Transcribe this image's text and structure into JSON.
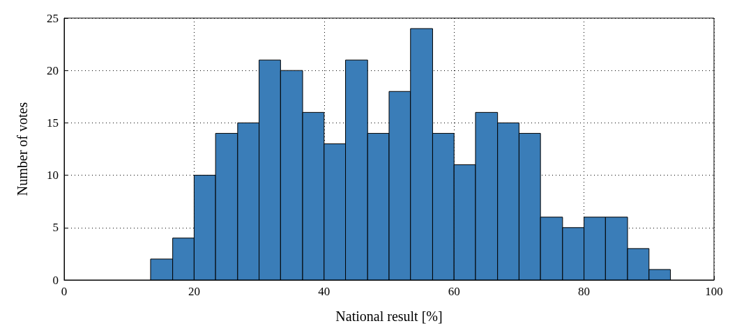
{
  "chart_data": {
    "type": "histogram",
    "xlabel": "National result [%]",
    "ylabel": "Number of votes",
    "bins": [
      13.3,
      16.7,
      20,
      23.3,
      26.7,
      30,
      33.3,
      36.7,
      40,
      43.3,
      46.7,
      50,
      53.3,
      56.7,
      60,
      63.3,
      66.7,
      70,
      73.3,
      76.7,
      80,
      83.3,
      86.7,
      90,
      93.3
    ],
    "values": [
      2,
      4,
      10,
      14,
      15,
      21,
      20,
      16,
      13,
      21,
      14,
      18,
      24,
      14,
      11,
      16,
      15,
      14,
      6,
      5,
      6,
      6,
      3,
      1
    ],
    "color": "#3a7db8",
    "xlim": [
      0,
      100
    ],
    "xticks": [
      0,
      20,
      40,
      60,
      80,
      100
    ],
    "ylim": [
      0,
      25
    ],
    "yticks": [
      0,
      5,
      10,
      15,
      20,
      25
    ],
    "grid": true
  }
}
